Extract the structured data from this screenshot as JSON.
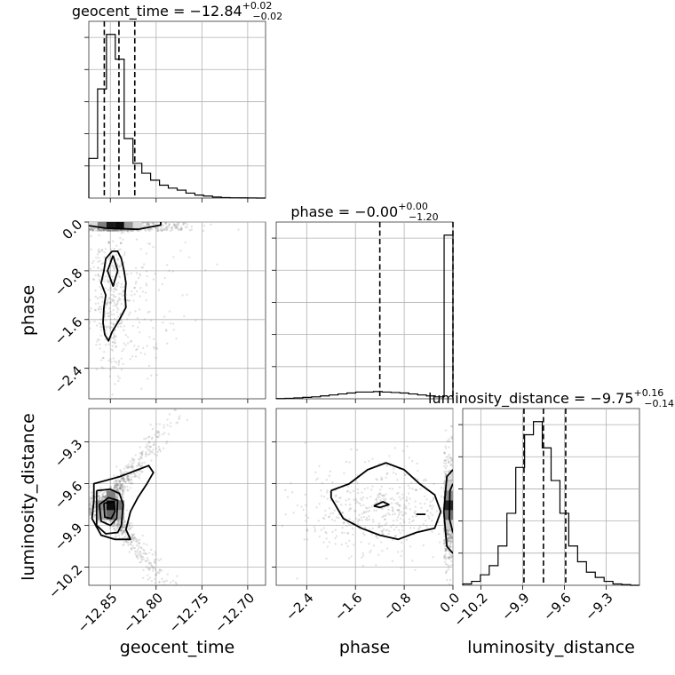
{
  "chart_data": {
    "type": "corner",
    "parameters": [
      "geocent_time",
      "phase",
      "luminosity_distance"
    ],
    "titles": [
      {
        "parameter": "geocent_time",
        "name": "geocent_time",
        "median": "−12.84",
        "plus": "+0.02",
        "minus": "−0.02"
      },
      {
        "parameter": "phase",
        "name": "phase",
        "median": "−0.00",
        "plus": "+0.00",
        "minus": "−1.20"
      },
      {
        "parameter": "luminosity_distance",
        "name": "luminosity_distance",
        "median": "−9.75",
        "plus": "+0.16",
        "minus": "−0.14"
      }
    ],
    "axes": {
      "geocent_time": {
        "range": [
          -12.8735,
          -12.6805
        ],
        "ticks": [
          -12.85,
          -12.8,
          -12.75,
          -12.7
        ],
        "tick_labels": [
          "−12.85",
          "−12.80",
          "−12.75",
          "−12.70"
        ],
        "label": "geocent_time"
      },
      "phase": {
        "range": [
          -2.9,
          0.0
        ],
        "ticks": [
          -2.4,
          -1.6,
          -0.8,
          0.0
        ],
        "tick_labels": [
          "−2.4",
          "−1.6",
          "−0.8",
          "0.0"
        ],
        "label": "phase"
      },
      "luminosity_distance": {
        "range": [
          -10.33,
          -9.06
        ],
        "ticks": [
          -10.2,
          -9.9,
          -9.6,
          -9.3
        ],
        "tick_labels": [
          "−10.2",
          "−9.9",
          "−9.6",
          "−9.3"
        ],
        "label": "luminosity_distance"
      }
    },
    "histograms": {
      "geocent_time": {
        "edges": [
          -12.8735,
          -12.8639,
          -12.8542,
          -12.8446,
          -12.8349,
          -12.8253,
          -12.8156,
          -12.806,
          -12.7963,
          -12.7867,
          -12.777,
          -12.7674,
          -12.7577,
          -12.7481,
          -12.7384,
          -12.7288,
          -12.7191,
          -12.7095,
          -12.6998,
          -12.6902,
          -12.6805
        ],
        "counts": [
          40,
          110,
          165,
          140,
          60,
          35,
          25,
          18,
          13,
          10,
          8,
          5,
          3,
          2,
          1,
          0.5,
          0.3,
          0.2,
          0.1,
          0
        ],
        "quantiles": [
          -12.8566,
          -12.8406,
          -12.8233
        ]
      },
      "phase": {
        "edges": [
          -2.9,
          -2.755,
          -2.61,
          -2.465,
          -2.32,
          -2.175,
          -2.03,
          -1.885,
          -1.74,
          -1.595,
          -1.45,
          -1.305,
          -1.16,
          -1.015,
          -0.87,
          -0.725,
          -0.58,
          -0.435,
          -0.29,
          -0.145,
          0.0
        ],
        "counts": [
          0.2,
          0.5,
          1,
          1.5,
          2,
          3,
          4,
          5,
          6,
          7,
          7,
          7.5,
          7,
          6.5,
          6,
          5,
          4,
          3,
          2,
          170
        ],
        "quantiles": [
          -1.2,
          0.0
        ]
      },
      "luminosity_distance": {
        "edges": [
          -10.33,
          -10.2665,
          -10.203,
          -10.1395,
          -10.076,
          -10.0125,
          -9.949,
          -9.8855,
          -9.822,
          -9.7585,
          -9.695,
          -9.6315,
          -9.568,
          -9.5045,
          -9.441,
          -9.3775,
          -9.314,
          -9.2505,
          -9.187,
          -9.1235,
          -9.06
        ],
        "counts": [
          1,
          3,
          8,
          15,
          30,
          55,
          90,
          115,
          125,
          105,
          80,
          55,
          30,
          18,
          10,
          6,
          3,
          1,
          0.5,
          0
        ],
        "quantiles": [
          -9.89,
          -9.75,
          -9.59
        ]
      }
    },
    "pairs": [
      {
        "x": "geocent_time",
        "y": "phase",
        "density_cells": [
          {
            "x": [
              -12.8735,
              -12.8639
            ],
            "y": [
              -0.1,
              0.0
            ],
            "shade": 0.15
          },
          {
            "x": [
              -12.8639,
              -12.8542
            ],
            "y": [
              -0.1,
              0.0
            ],
            "shade": 0.5
          },
          {
            "x": [
              -12.8542,
              -12.8446
            ],
            "y": [
              -0.1,
              0.0
            ],
            "shade": 0.9
          },
          {
            "x": [
              -12.8446,
              -12.8349
            ],
            "y": [
              -0.1,
              0.0
            ],
            "shade": 0.95
          },
          {
            "x": [
              -12.8349,
              -12.8253
            ],
            "y": [
              -0.1,
              0.0
            ],
            "shade": 0.4
          },
          {
            "x": [
              -12.8253,
              -12.8156
            ],
            "y": [
              -0.1,
              0.0
            ],
            "shade": 0.15
          }
        ],
        "contours": [
          [
            [
              -12.8735,
              -0.06
            ],
            [
              -12.855,
              -0.1
            ],
            [
              -12.82,
              -0.12
            ],
            [
              -12.795,
              -0.05
            ],
            [
              -12.795,
              0.0
            ]
          ],
          [
            [
              -12.847,
              -0.55
            ],
            [
              -12.853,
              -0.8
            ],
            [
              -12.847,
              -1.05
            ],
            [
              -12.842,
              -0.8
            ],
            [
              -12.847,
              -0.55
            ]
          ],
          [
            [
              -12.848,
              -0.48
            ],
            [
              -12.855,
              -0.6
            ],
            [
              -12.857,
              -0.8
            ],
            [
              -12.86,
              -1.0
            ],
            [
              -12.855,
              -1.2
            ],
            [
              -12.857,
              -1.4
            ],
            [
              -12.858,
              -1.65
            ],
            [
              -12.856,
              -1.85
            ],
            [
              -12.852,
              -1.95
            ],
            [
              -12.848,
              -1.8
            ],
            [
              -12.84,
              -1.6
            ],
            [
              -12.833,
              -1.4
            ],
            [
              -12.834,
              -1.2
            ],
            [
              -12.833,
              -1.0
            ],
            [
              -12.835,
              -0.8
            ],
            [
              -12.838,
              -0.6
            ],
            [
              -12.842,
              -0.48
            ],
            [
              -12.848,
              -0.48
            ]
          ]
        ]
      },
      {
        "x": "geocent_time",
        "y": "luminosity_distance",
        "density_cells": [
          {
            "x": [
              -12.8639,
              -12.8542
            ],
            "y": [
              -9.86,
              -9.79
            ],
            "shade": 0.35
          },
          {
            "x": [
              -12.8639,
              -12.8542
            ],
            "y": [
              -9.79,
              -9.72
            ],
            "shade": 0.45
          },
          {
            "x": [
              -12.8542,
              -12.8446
            ],
            "y": [
              -9.86,
              -9.79
            ],
            "shade": 0.6
          },
          {
            "x": [
              -12.8542,
              -12.8446
            ],
            "y": [
              -9.79,
              -9.72
            ],
            "shade": 0.95
          },
          {
            "x": [
              -12.8542,
              -12.8446
            ],
            "y": [
              -9.72,
              -9.65
            ],
            "shade": 0.5
          },
          {
            "x": [
              -12.8446,
              -12.8349
            ],
            "y": [
              -9.79,
              -9.72
            ],
            "shade": 0.55
          },
          {
            "x": [
              -12.8446,
              -12.8349
            ],
            "y": [
              -9.86,
              -9.79
            ],
            "shade": 0.35
          }
        ],
        "contours": [
          [
            [
              -12.865,
              -9.65
            ],
            [
              -12.865,
              -9.9
            ],
            [
              -12.855,
              -9.96
            ],
            [
              -12.842,
              -9.95
            ],
            [
              -12.838,
              -9.9
            ],
            [
              -12.836,
              -9.75
            ],
            [
              -12.84,
              -9.67
            ],
            [
              -12.85,
              -9.64
            ],
            [
              -12.865,
              -9.65
            ]
          ],
          [
            [
              -12.862,
              -9.75
            ],
            [
              -12.86,
              -9.87
            ],
            [
              -12.85,
              -9.9
            ],
            [
              -12.843,
              -9.85
            ],
            [
              -12.842,
              -9.72
            ],
            [
              -12.852,
              -9.7
            ],
            [
              -12.862,
              -9.75
            ]
          ],
          [
            [
              -12.857,
              -9.74
            ],
            [
              -12.856,
              -9.84
            ],
            [
              -12.849,
              -9.85
            ],
            [
              -12.845,
              -9.8
            ],
            [
              -12.846,
              -9.73
            ],
            [
              -12.857,
              -9.74
            ]
          ],
          [
            [
              -12.868,
              -9.72
            ],
            [
              -12.87,
              -9.85
            ],
            [
              -12.86,
              -9.97
            ],
            [
              -12.845,
              -10.0
            ],
            [
              -12.828,
              -10.0
            ],
            [
              -12.833,
              -9.93
            ],
            [
              -12.828,
              -9.8
            ],
            [
              -12.82,
              -9.7
            ],
            [
              -12.81,
              -9.6
            ],
            [
              -12.803,
              -9.52
            ],
            [
              -12.808,
              -9.47
            ],
            [
              -12.82,
              -9.5
            ],
            [
              -12.84,
              -9.55
            ],
            [
              -12.868,
              -9.6
            ],
            [
              -12.868,
              -9.72
            ]
          ]
        ]
      },
      {
        "x": "phase",
        "y": "luminosity_distance",
        "density_cells": [
          {
            "x": [
              -0.145,
              0.0
            ],
            "y": [
              -9.86,
              -9.79
            ],
            "shade": 0.55
          },
          {
            "x": [
              -0.145,
              0.0
            ],
            "y": [
              -9.79,
              -9.72
            ],
            "shade": 0.85
          },
          {
            "x": [
              -0.145,
              0.0
            ],
            "y": [
              -9.72,
              -9.65
            ],
            "shade": 0.45
          },
          {
            "x": [
              -0.145,
              0.0
            ],
            "y": [
              -9.65,
              -9.58
            ],
            "shade": 0.2
          },
          {
            "x": [
              -0.145,
              0.0
            ],
            "y": [
              -9.93,
              -9.86
            ],
            "shade": 0.2
          }
        ],
        "contours": [
          [
            [
              -1.3,
              -9.76
            ],
            [
              -1.15,
              -9.73
            ],
            [
              -1.05,
              -9.75
            ],
            [
              -1.2,
              -9.77
            ],
            [
              -1.3,
              -9.76
            ]
          ],
          [
            [
              -0.6,
              -9.82
            ],
            [
              -0.45,
              -9.82
            ]
          ],
          [
            [
              0.0,
              -9.5
            ],
            [
              -0.1,
              -9.55
            ],
            [
              -0.15,
              -9.8
            ],
            [
              -0.1,
              -10.05
            ],
            [
              0.0,
              -10.1
            ]
          ],
          [
            [
              0.0,
              -9.6
            ],
            [
              -0.05,
              -9.65
            ],
            [
              -0.06,
              -9.85
            ],
            [
              0.0,
              -9.95
            ]
          ],
          [
            [
              -2.0,
              -9.65
            ],
            [
              -1.7,
              -9.6
            ],
            [
              -1.4,
              -9.5
            ],
            [
              -1.1,
              -9.45
            ],
            [
              -0.8,
              -9.5
            ],
            [
              -0.55,
              -9.6
            ],
            [
              -0.3,
              -9.68
            ],
            [
              -0.2,
              -9.8
            ],
            [
              -0.3,
              -9.92
            ],
            [
              -0.6,
              -9.95
            ],
            [
              -0.9,
              -10.0
            ],
            [
              -1.2,
              -9.97
            ],
            [
              -1.5,
              -9.92
            ],
            [
              -1.8,
              -9.85
            ],
            [
              -2.0,
              -9.7
            ],
            [
              -2.0,
              -9.65
            ]
          ]
        ]
      }
    ],
    "colors": {
      "ink": "#000000",
      "grid": "#b0b0b0",
      "frame": "#333333",
      "scatter": "#7f7f7f"
    },
    "grid": true
  }
}
